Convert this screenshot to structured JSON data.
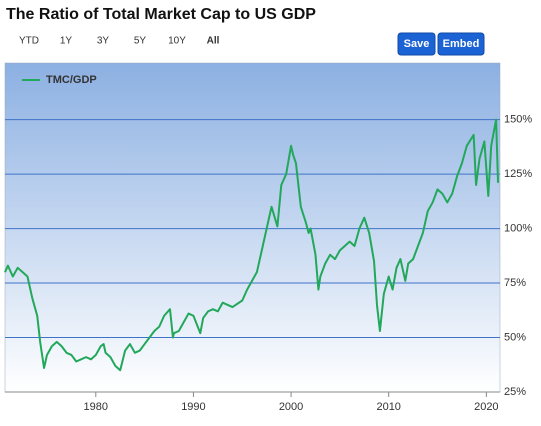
{
  "toolbar": {
    "ranges": [
      "YTD",
      "1Y",
      "3Y",
      "5Y",
      "10Y",
      "All"
    ],
    "buttons": [
      "Save",
      "Embed"
    ]
  },
  "chart_data": {
    "type": "line",
    "title": "The Ratio of Total Market Cap to US GDP",
    "x": [
      1970.7,
      1971,
      1971.5,
      1972,
      1972.5,
      1973,
      1973.5,
      1974,
      1974.3,
      1974.7,
      1975,
      1975.5,
      1976,
      1976.5,
      1977,
      1977.5,
      1978,
      1978.5,
      1979,
      1979.5,
      1980,
      1980.5,
      1980.8,
      1981,
      1981.5,
      1982,
      1982.5,
      1983,
      1983.5,
      1984,
      1984.5,
      1985,
      1985.5,
      1986,
      1986.5,
      1987,
      1987.6,
      1987.9,
      1988,
      1988.5,
      1989,
      1989.5,
      1990,
      1990.7,
      1991,
      1991.5,
      1992,
      1992.5,
      1993,
      1994,
      1995,
      1995.5,
      1996,
      1996.5,
      1997,
      1997.5,
      1998,
      1998.6,
      1999,
      1999.5,
      2000,
      2000.2,
      2000.5,
      2001,
      2001.5,
      2001.8,
      2002,
      2002.5,
      2002.8,
      2003,
      2003.5,
      2004,
      2004.5,
      2005,
      2005.5,
      2006,
      2006.5,
      2007,
      2007.5,
      2008,
      2008.5,
      2008.8,
      2009.1,
      2009.5,
      2010,
      2010.4,
      2010.8,
      2011.2,
      2011.7,
      2012,
      2012.5,
      2013,
      2013.5,
      2014,
      2014.5,
      2015,
      2015.5,
      2016,
      2016.5,
      2017,
      2017.5,
      2018,
      2018.7,
      2018.95,
      2019.3,
      2019.8,
      2020.2,
      2020.5,
      2021,
      2021.2
    ],
    "series": [
      {
        "name": "TMC/GDP",
        "color": "#22a85a",
        "values": [
          80,
          83,
          78,
          82,
          80,
          78,
          68,
          60,
          48,
          36,
          42,
          46,
          48,
          46,
          43,
          42,
          39,
          40,
          41,
          40,
          42,
          46,
          47,
          43,
          41,
          37,
          35,
          44,
          47,
          43,
          44,
          47,
          50,
          53,
          55,
          60,
          63,
          50,
          52,
          53,
          57,
          61,
          60,
          52,
          59,
          62,
          63,
          62,
          66,
          64,
          67,
          72,
          76,
          80,
          90,
          100,
          110,
          101,
          120,
          125,
          138,
          134,
          130,
          110,
          103,
          98,
          100,
          88,
          72,
          78,
          84,
          88,
          86,
          90,
          92,
          94,
          92,
          100,
          105,
          98,
          85,
          65,
          53,
          70,
          78,
          72,
          82,
          86,
          76,
          84,
          86,
          92,
          98,
          108,
          112,
          118,
          116,
          112,
          116,
          124,
          130,
          138,
          143,
          120,
          132,
          140,
          115,
          138,
          150,
          121
        ]
      }
    ],
    "xlim": [
      1970.7,
      2021.4
    ],
    "xticks": [
      1980,
      1990,
      2000,
      2010,
      2020
    ],
    "ylim": [
      25,
      176
    ],
    "yticks": [
      {
        "value": 25,
        "label": "25%"
      },
      {
        "value": 50,
        "label": "50%"
      },
      {
        "value": 75,
        "label": "75%"
      },
      {
        "value": 100,
        "label": "100%"
      },
      {
        "value": 125,
        "label": "125%"
      },
      {
        "value": 150,
        "label": "150%"
      }
    ],
    "grid": true,
    "legend": "top-left"
  }
}
